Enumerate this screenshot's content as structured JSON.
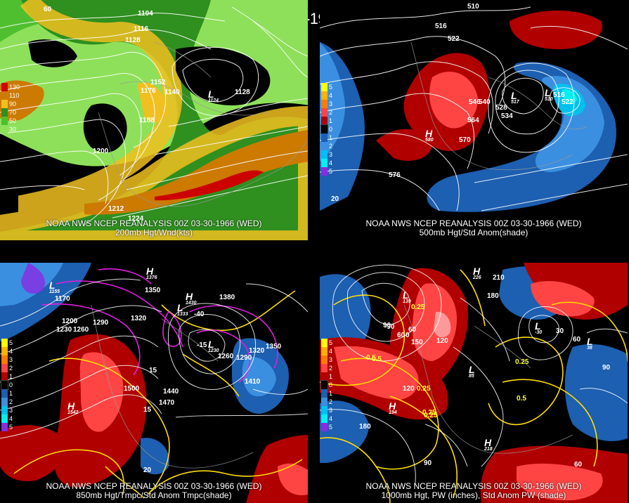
{
  "title": "00Z 03-30-1966 (WED)",
  "panels": [
    {
      "caption1": "NOAA NWS NCEP REANALYSIS 00Z 03-30-1966 (WED)",
      "caption2": "200mb Hgt/Wnd(kts)",
      "legend": [
        {
          "label": "130",
          "color": "#cc0000"
        },
        {
          "label": "110",
          "color": "#cc7a00"
        },
        {
          "label": "90",
          "color": "#f0c020"
        },
        {
          "label": "70",
          "color": "#2f8f1f"
        },
        {
          "label": "50",
          "color": "#4fbf2f"
        },
        {
          "label": "30",
          "color": "#8ee05a"
        }
      ],
      "contour_labels": [
        "1104",
        "1116",
        "1128",
        "1152",
        "1176",
        "1140",
        "1128",
        "1188",
        "1200",
        "1212",
        "1224",
        "60"
      ],
      "lows": [
        {
          "sym": "L",
          "val": "1124"
        }
      ]
    },
    {
      "caption1": "NOAA NWS NCEP REANALYSIS 00Z 03-30-1966 (WED)",
      "caption2": "500mb Hgt/Std Anom(shade)",
      "legend": [
        {
          "label": "5",
          "color": "#ffff00"
        },
        {
          "label": "4",
          "color": "#ffb000"
        },
        {
          "label": "3",
          "color": "#ff7b00"
        },
        {
          "label": "2",
          "color": "#ff4444"
        },
        {
          "label": "1",
          "color": "#b00000"
        },
        {
          "label": "0",
          "color": "#000000"
        },
        {
          "label": "1",
          "color": "#1d5fb0"
        },
        {
          "label": "2",
          "color": "#3b8fe0"
        },
        {
          "label": "3",
          "color": "#00c0f0"
        },
        {
          "label": "4",
          "color": "#00f0f0"
        },
        {
          "label": "5",
          "color": "#8a2be2"
        }
      ],
      "contour_labels": [
        "510",
        "516",
        "522",
        "546",
        "540",
        "528",
        "534",
        "564",
        "570",
        "576",
        "516",
        "522",
        "20"
      ],
      "highs": [
        {
          "sym": "H",
          "val": "580"
        }
      ],
      "lows": [
        {
          "sym": "L",
          "val": "517"
        },
        {
          "sym": "L",
          "val": "510"
        }
      ]
    },
    {
      "caption1": "NOAA NWS NCEP REANALYSIS 00Z 03-30-1966 (WED)",
      "caption2": "850mb Hgt/Tmpc/Std Anom Tmpc(shade)",
      "legend": [
        {
          "label": "5",
          "color": "#ffff00"
        },
        {
          "label": "4",
          "color": "#ffb000"
        },
        {
          "label": "3",
          "color": "#ff7b00"
        },
        {
          "label": "2",
          "color": "#ff4444"
        },
        {
          "label": "1",
          "color": "#b00000"
        },
        {
          "label": "0",
          "color": "#000000"
        },
        {
          "label": "1",
          "color": "#1d5fb0"
        },
        {
          "label": "2",
          "color": "#3b8fe0"
        },
        {
          "label": "3",
          "color": "#00c0f0"
        },
        {
          "label": "4",
          "color": "#00f0f0"
        },
        {
          "label": "5",
          "color": "#8a2be2"
        }
      ],
      "contour_labels": [
        "1170",
        "1200",
        "1230",
        "1260",
        "1290",
        "1320",
        "1350",
        "1380",
        "1320",
        "1350",
        "1260",
        "1290",
        "1410",
        "1440",
        "1470",
        "1500",
        "-40",
        "-15",
        "15",
        "15",
        "20"
      ],
      "highs": [
        {
          "sym": "H",
          "val": "1376"
        },
        {
          "sym": "H",
          "val": "1430"
        },
        {
          "sym": "H",
          "val": "1542"
        }
      ],
      "lows": [
        {
          "sym": "L",
          "val": "1155"
        },
        {
          "sym": "L",
          "val": "1230"
        },
        {
          "sym": "L",
          "val": "1333"
        }
      ]
    },
    {
      "caption1": "NOAA NWS NCEP REANALYSIS 00Z 03-30-1966 (WED)",
      "caption2": "1000mb Hgt, PW (inches), Std Anom PW (shade)",
      "legend": [
        {
          "label": "5",
          "color": "#ffff00"
        },
        {
          "label": "4",
          "color": "#ffb000"
        },
        {
          "label": "3",
          "color": "#ff7b00"
        },
        {
          "label": "2",
          "color": "#ff4444"
        },
        {
          "label": "1",
          "color": "#b00000"
        },
        {
          "label": "0",
          "color": "#000000"
        },
        {
          "label": "1",
          "color": "#1d5fb0"
        },
        {
          "label": "2",
          "color": "#3b8fe0"
        },
        {
          "label": "3",
          "color": "#00c0f0"
        },
        {
          "label": "4",
          "color": "#00f0f0"
        },
        {
          "label": "5",
          "color": "#8a2be2"
        }
      ],
      "contour_labels": [
        "210",
        "180",
        "150",
        "120",
        "90",
        "60",
        "30",
        "90",
        "60",
        "120",
        "180",
        "90",
        "60",
        "-90",
        "60",
        "0"
      ],
      "pw_labels": [
        "0.25",
        "0.5",
        "0.5",
        "0.25",
        "0.25",
        "0.5",
        "0.25",
        "0.25"
      ],
      "highs": [
        {
          "sym": "H",
          "val": "226"
        },
        {
          "sym": "H",
          "val": "194"
        },
        {
          "sym": "H",
          "val": "218"
        }
      ],
      "lows": [
        {
          "sym": "L",
          "val": "139"
        },
        {
          "sym": "L",
          "val": "85"
        },
        {
          "sym": "L",
          "val": "-30"
        },
        {
          "sym": "L",
          "val": "38"
        }
      ]
    }
  ]
}
